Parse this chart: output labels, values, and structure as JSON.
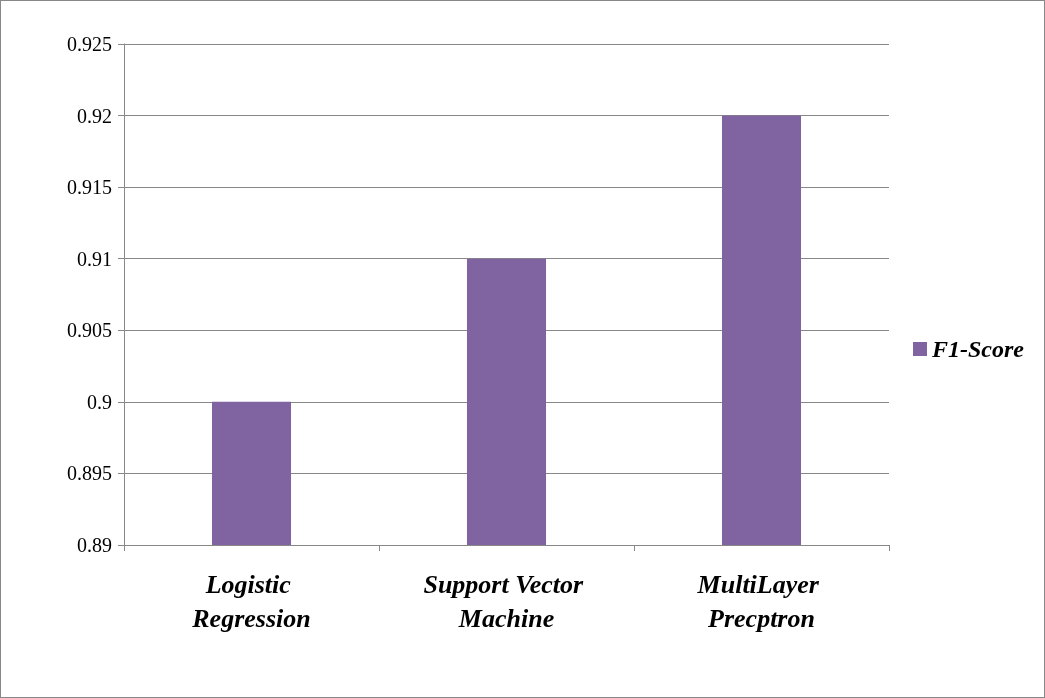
{
  "chart_data": {
    "type": "bar",
    "categories": [
      "Logistic Regression",
      "Support Vector Machine",
      "MultiLayer Precptron"
    ],
    "series": [
      {
        "name": "F1-Score",
        "color": "#8064a2",
        "values": [
          0.9,
          0.91,
          0.92
        ]
      }
    ],
    "ylim": [
      0.89,
      0.925
    ],
    "yticks": [
      0.89,
      0.895,
      0.9,
      0.905,
      0.91,
      0.915,
      0.92,
      0.925
    ],
    "grid": "y",
    "legend": "right"
  }
}
